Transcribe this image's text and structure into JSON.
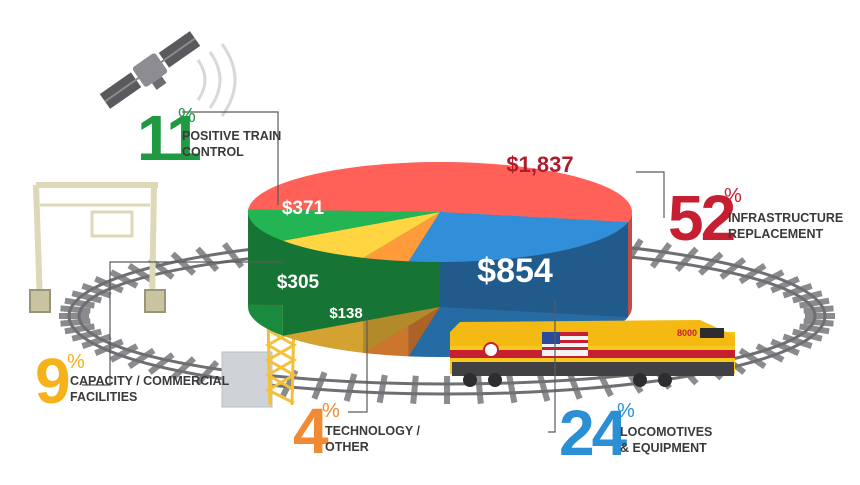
{
  "chart_data": {
    "type": "pie",
    "categories": [
      "Infrastructure Replacement",
      "Locomotives & Equipment",
      "Technology / Other",
      "Capacity / Commercial Facilities",
      "Positive Train Control"
    ],
    "values": [
      1837,
      854,
      138,
      305,
      371
    ],
    "value_labels": [
      "$1,837",
      "$854",
      "$138",
      "$305",
      "$371"
    ],
    "percentages": [
      52,
      24,
      4,
      9,
      11
    ],
    "captions": [
      [
        "INFRASTRUCTURE",
        "REPLACEMENT"
      ],
      [
        "LOCOMOTIVES",
        "& EQUIPMENT"
      ],
      [
        "TECHNOLOGY /",
        "OTHER"
      ],
      [
        "CAPACITY / COMMERCIAL",
        "FACILITIES"
      ],
      [
        "POSITIVE TRAIN",
        "CONTROL"
      ]
    ],
    "percent_sign": "%",
    "colors": [
      "#e8574f",
      "#2c7fc1",
      "#f08a35",
      "#f8bf3a",
      "#1fa24a"
    ],
    "number_colors": [
      "#c61f31",
      "#2a8fd4",
      "#f08a35",
      "#f6b21a",
      "#1f9a43"
    ]
  },
  "illustrations": {
    "satellite": "satellite-icon",
    "crane": "gantry-crane-icon",
    "tower": "signal-tower-icon",
    "locomotive": "locomotive-icon",
    "locomotive_number": "8000",
    "track": "railroad-track"
  }
}
